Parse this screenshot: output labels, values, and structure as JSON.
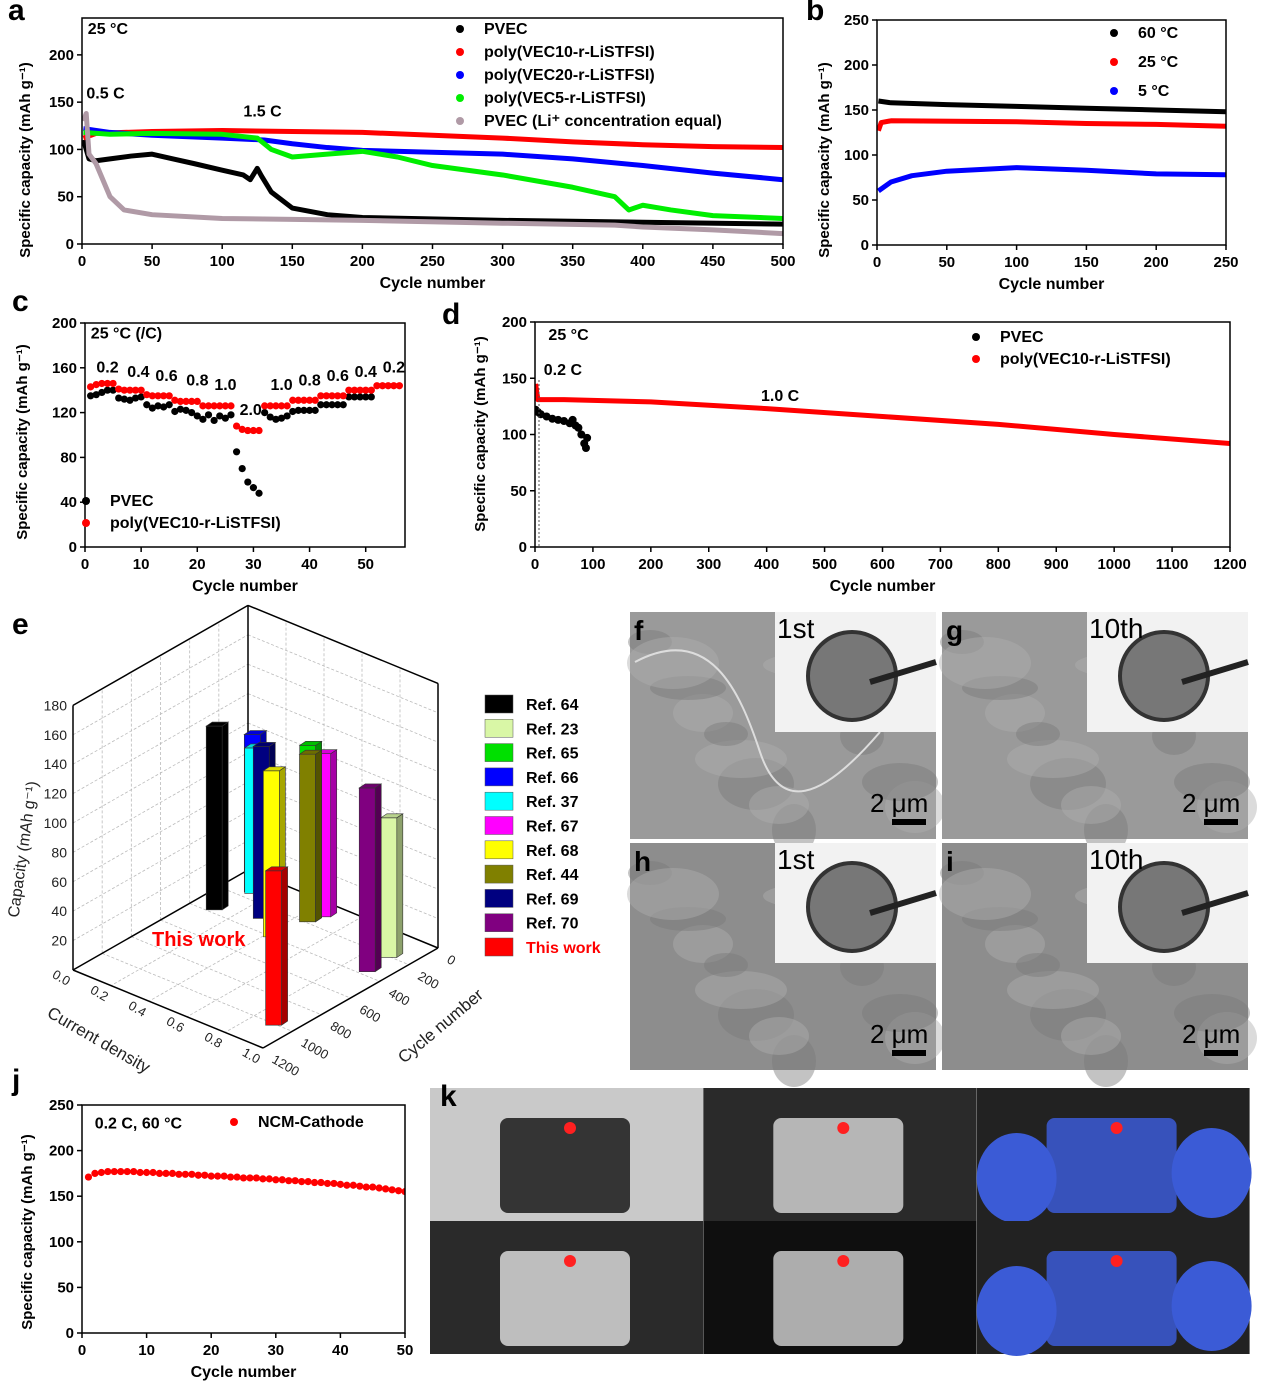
{
  "panel_letters": [
    "a",
    "b",
    "c",
    "d",
    "e",
    "f",
    "g",
    "h",
    "i",
    "j",
    "k"
  ],
  "chart_data": [
    {
      "id": "a",
      "type": "line",
      "xlabel": "Cycle number",
      "ylabel": "Specific capacity (mAh g⁻¹)",
      "xlim": [
        0,
        500
      ],
      "ylim": [
        0,
        239
      ],
      "xticks": [
        0,
        50,
        100,
        150,
        200,
        250,
        300,
        350,
        400,
        450,
        500
      ],
      "yticks": [
        0,
        50,
        100,
        150,
        200
      ],
      "legend_position": "top-right",
      "annotations": [
        {
          "text": "25 °C",
          "x": 2,
          "y": 222
        },
        {
          "text": "0.5 C",
          "x": 1,
          "y": 154
        },
        {
          "text": "1.5 C",
          "x": 113,
          "y": 135
        }
      ],
      "series": [
        {
          "name": "PVEC",
          "color": "#000000",
          "points": [
            [
              1,
              110
            ],
            [
              5,
              90
            ],
            [
              10,
              88
            ],
            [
              20,
              90
            ],
            [
              35,
              93
            ],
            [
              50,
              95
            ],
            [
              65,
              90
            ],
            [
              80,
              85
            ],
            [
              100,
              78
            ],
            [
              115,
              73
            ],
            [
              120,
              68
            ],
            [
              125,
              80
            ],
            [
              128,
              72
            ],
            [
              135,
              55
            ],
            [
              150,
              38
            ],
            [
              175,
              31
            ],
            [
              200,
              28
            ],
            [
              300,
              25
            ],
            [
              400,
              23
            ],
            [
              500,
              21
            ]
          ]
        },
        {
          "name": "poly(VEC10-r-LiSTFSI)",
          "color": "#ff0000",
          "points": [
            [
              1,
              112
            ],
            [
              10,
              117
            ],
            [
              50,
              119
            ],
            [
              100,
              120
            ],
            [
              150,
              119
            ],
            [
              200,
              118
            ],
            [
              250,
              115
            ],
            [
              300,
              112
            ],
            [
              350,
              108
            ],
            [
              400,
              105
            ],
            [
              450,
              103
            ],
            [
              500,
              102
            ]
          ]
        },
        {
          "name": "poly(VEC20-r-LiSTFSI)",
          "color": "#0000ff",
          "points": [
            [
              1,
              122
            ],
            [
              20,
              118
            ],
            [
              50,
              115
            ],
            [
              100,
              112
            ],
            [
              130,
              110
            ],
            [
              150,
              106
            ],
            [
              175,
              102
            ],
            [
              200,
              99
            ],
            [
              250,
              97
            ],
            [
              300,
              95
            ],
            [
              350,
              90
            ],
            [
              400,
              83
            ],
            [
              450,
              75
            ],
            [
              500,
              68
            ]
          ]
        },
        {
          "name": "poly(VEC5-r-LiSTFSI)",
          "color": "#00ee00",
          "points": [
            [
              1,
              118
            ],
            [
              20,
              116
            ],
            [
              50,
              117
            ],
            [
              100,
              116
            ],
            [
              125,
              112
            ],
            [
              135,
              100
            ],
            [
              150,
              92
            ],
            [
              175,
              95
            ],
            [
              200,
              98
            ],
            [
              225,
              92
            ],
            [
              250,
              83
            ],
            [
              300,
              73
            ],
            [
              350,
              60
            ],
            [
              380,
              50
            ],
            [
              390,
              36
            ],
            [
              400,
              41
            ],
            [
              420,
              36
            ],
            [
              450,
              30
            ],
            [
              500,
              27
            ]
          ]
        },
        {
          "name": "PVEC (Li⁺ concentration equal)",
          "color": "#b09aa6",
          "points": [
            [
              1,
              130
            ],
            [
              3,
              138
            ],
            [
              5,
              95
            ],
            [
              10,
              85
            ],
            [
              20,
              50
            ],
            [
              30,
              36
            ],
            [
              50,
              31
            ],
            [
              100,
              27
            ],
            [
              150,
              26
            ],
            [
              200,
              25
            ],
            [
              300,
              22
            ],
            [
              380,
              20
            ],
            [
              400,
              18
            ],
            [
              450,
              15
            ],
            [
              500,
              11
            ]
          ]
        }
      ]
    },
    {
      "id": "b",
      "type": "line",
      "xlabel": "Cycle number",
      "ylabel": "Specific capacity (mAh g⁻¹)",
      "xlim": [
        0,
        250
      ],
      "ylim": [
        0,
        250
      ],
      "xticks": [
        0,
        50,
        100,
        150,
        200,
        250
      ],
      "yticks": [
        0,
        50,
        100,
        150,
        200,
        250
      ],
      "legend_position": "top-right",
      "annotations": [],
      "series": [
        {
          "name": "60 °C",
          "color": "#000000",
          "points": [
            [
              1,
              160
            ],
            [
              10,
              158
            ],
            [
              50,
              156
            ],
            [
              100,
              154
            ],
            [
              150,
              152
            ],
            [
              200,
              150
            ],
            [
              250,
              148
            ]
          ]
        },
        {
          "name": "25 °C",
          "color": "#ff0000",
          "points": [
            [
              1,
              127
            ],
            [
              3,
              136
            ],
            [
              10,
              138
            ],
            [
              100,
              137
            ],
            [
              150,
              135
            ],
            [
              200,
              134
            ],
            [
              250,
              132
            ]
          ]
        },
        {
          "name": "5 °C",
          "color": "#0000ff",
          "points": [
            [
              1,
              60
            ],
            [
              10,
              70
            ],
            [
              25,
              77
            ],
            [
              50,
              82
            ],
            [
              100,
              86
            ],
            [
              150,
              83
            ],
            [
              200,
              79
            ],
            [
              250,
              78
            ]
          ]
        }
      ]
    },
    {
      "id": "c",
      "type": "scatter",
      "xlabel": "Cycle number",
      "ylabel": "Specific capacity (mAh g⁻¹)",
      "xlim": [
        0,
        57
      ],
      "ylim": [
        0,
        200
      ],
      "xticks": [
        0,
        10,
        20,
        30,
        40,
        50
      ],
      "yticks": [
        0,
        40,
        80,
        120,
        160,
        200
      ],
      "legend_position": "bottom-left",
      "annotations": [
        {
          "text": "25 °C (/C)",
          "x": 0.5,
          "y": 186
        },
        {
          "text": "0.2",
          "x": 1.5,
          "y": 156
        },
        {
          "text": "0.4",
          "x": 7,
          "y": 152
        },
        {
          "text": "0.6",
          "x": 12,
          "y": 148
        },
        {
          "text": "0.8",
          "x": 17.5,
          "y": 144
        },
        {
          "text": "1.0",
          "x": 22.5,
          "y": 140
        },
        {
          "text": "2.0",
          "x": 27,
          "y": 118
        },
        {
          "text": "1.0",
          "x": 32.5,
          "y": 140
        },
        {
          "text": "0.8",
          "x": 37.5,
          "y": 144
        },
        {
          "text": "0.6",
          "x": 42.5,
          "y": 148
        },
        {
          "text": "0.4",
          "x": 47.5,
          "y": 152
        },
        {
          "text": "0.2",
          "x": 52.5,
          "y": 156
        }
      ],
      "series": [
        {
          "name": "PVEC",
          "color": "#000000",
          "values": [
            135,
            136,
            138,
            140,
            140,
            133,
            132,
            131,
            133,
            134,
            127,
            124,
            126,
            125,
            127,
            121,
            123,
            122,
            120,
            117,
            114,
            118,
            113,
            117,
            115,
            118,
            85,
            70,
            58,
            53,
            48,
            120,
            116,
            114,
            115,
            117,
            121,
            122,
            122,
            122,
            122,
            127,
            127,
            127,
            127,
            127,
            134,
            134,
            134,
            134,
            134
          ]
        },
        {
          "name": "poly(VEC10-r-LiSTFSI)",
          "color": "#ff0000",
          "values": [
            143,
            145,
            146,
            146,
            146,
            141,
            140,
            140,
            140,
            140,
            136,
            135,
            135,
            135,
            135,
            131,
            130,
            130,
            130,
            130,
            126,
            126,
            126,
            126,
            126,
            126,
            108,
            105,
            104,
            104,
            104,
            126,
            126,
            126,
            126,
            126,
            131,
            131,
            131,
            131,
            131,
            135,
            135,
            135,
            135,
            135,
            140,
            140,
            140,
            140,
            140,
            144,
            144,
            144,
            144,
            144
          ]
        }
      ]
    },
    {
      "id": "d",
      "type": "line",
      "xlabel": "Cycle number",
      "ylabel": "Specific capacity (mAh g⁻¹)",
      "xlim": [
        0,
        1200
      ],
      "ylim": [
        0,
        200
      ],
      "xticks": [
        0,
        100,
        200,
        300,
        400,
        500,
        600,
        700,
        800,
        900,
        1000,
        1100,
        1200
      ],
      "yticks": [
        0,
        50,
        100,
        150,
        200
      ],
      "legend_position": "top-right",
      "annotations": [
        {
          "text": "25 °C",
          "x": 18,
          "y": 184
        },
        {
          "text": "0.2 C",
          "x": 10,
          "y": 153
        },
        {
          "text": "1.0 C",
          "x": 385,
          "y": 130
        }
      ],
      "series": [
        {
          "name": "PVEC",
          "color": "#000000",
          "marker": "dot",
          "points": [
            [
              1,
              122
            ],
            [
              5,
              120
            ],
            [
              10,
              118
            ],
            [
              20,
              116
            ],
            [
              30,
              114
            ],
            [
              40,
              113
            ],
            [
              50,
              112
            ],
            [
              60,
              110
            ],
            [
              65,
              113
            ],
            [
              70,
              108
            ],
            [
              75,
              106
            ],
            [
              80,
              100
            ],
            [
              85,
              92
            ],
            [
              88,
              88
            ],
            [
              90,
              97
            ]
          ]
        },
        {
          "name": "poly(VEC10-r-LiSTFSI)",
          "color": "#ff0000",
          "points": [
            [
              1,
              145
            ],
            [
              5,
              131
            ],
            [
              50,
              131
            ],
            [
              200,
              129
            ],
            [
              400,
              123
            ],
            [
              600,
              116
            ],
            [
              800,
              109
            ],
            [
              1000,
              100
            ],
            [
              1200,
              92
            ]
          ]
        }
      ]
    },
    {
      "id": "e",
      "type": "bar3d",
      "zlabel": "Capacity (mAh g⁻¹)",
      "xlabel": "Current density",
      "ylabel": "Cycle number",
      "zlim": [
        0,
        180
      ],
      "xlim": [
        0,
        1.0
      ],
      "ylim": [
        0,
        1200
      ],
      "zticks": [
        20,
        40,
        60,
        80,
        100,
        120,
        140,
        160,
        180
      ],
      "xticks": [
        "0.0",
        "0.2",
        "0.4",
        "0.6",
        "0.8",
        "1.0"
      ],
      "yticks": [
        0,
        200,
        400,
        600,
        800,
        1000,
        1200
      ],
      "annotation": "This work",
      "legend_position": "right",
      "bars": [
        {
          "name": "Ref. 64",
          "color": "#000000",
          "current": 0.11,
          "cycles": 375,
          "capacity": 125
        },
        {
          "name": "Ref. 23",
          "color": "#d9f7a6",
          "current": 0.9,
          "cycles": 207,
          "capacity": 95
        },
        {
          "name": "Ref. 65",
          "color": "#00e000",
          "current": 0.46,
          "cycles": 190,
          "capacity": 120
        },
        {
          "name": "Ref. 66",
          "color": "#0000ff",
          "current": 0.13,
          "cycles": 140,
          "capacity": 107
        },
        {
          "name": "Ref. 37",
          "color": "#00ffff",
          "current": 0.14,
          "cycles": 150,
          "capacity": 99
        },
        {
          "name": "Ref. 67",
          "color": "#ff00ff",
          "current": 0.48,
          "cycles": 113,
          "capacity": 111
        },
        {
          "name": "Ref. 68",
          "color": "#ffff00",
          "current": 0.43,
          "cycles": 400,
          "capacity": 113
        },
        {
          "name": "Ref. 44",
          "color": "#808000",
          "current": 0.46,
          "cycles": 191,
          "capacity": 114
        },
        {
          "name": "Ref. 69",
          "color": "#000080",
          "current": 0.3,
          "cycles": 300,
          "capacity": 117
        },
        {
          "name": "Ref. 70",
          "color": "#800080",
          "current": 0.91,
          "cycles": 368,
          "capacity": 125
        },
        {
          "name": "This work",
          "color": "#ff0000",
          "current": 0.91,
          "cycles": 1010,
          "capacity": 105
        }
      ]
    },
    {
      "id": "j",
      "type": "scatter",
      "xlabel": "Cycle number",
      "ylabel": "Specific capacity (mAh g⁻¹)",
      "xlim": [
        0,
        50
      ],
      "ylim": [
        0,
        250
      ],
      "xticks": [
        0,
        10,
        20,
        30,
        40,
        50
      ],
      "yticks": [
        0,
        50,
        100,
        150,
        200,
        250
      ],
      "legend_position": "top-right",
      "annotations": [
        {
          "text": "0.2 C, 60 °C",
          "x": 1.5,
          "y": 224
        }
      ],
      "series": [
        {
          "name": "NCM-Cathode",
          "color": "#ff0000",
          "values": [
            171,
            175,
            176,
            177,
            177,
            177,
            177,
            177,
            176,
            176,
            176,
            175,
            175,
            175,
            174,
            174,
            174,
            173,
            173,
            172,
            172,
            172,
            171,
            171,
            170,
            170,
            170,
            169,
            169,
            168,
            168,
            167,
            167,
            166,
            166,
            165,
            165,
            164,
            164,
            163,
            162,
            162,
            161,
            160,
            160,
            159,
            158,
            157,
            156,
            155
          ]
        }
      ]
    }
  ],
  "sem_images": [
    {
      "panel": "f",
      "cycle_label": "1st",
      "scale_bar": "2 μm"
    },
    {
      "panel": "g",
      "cycle_label": "10th",
      "scale_bar": "2 μm"
    },
    {
      "panel": "h",
      "cycle_label": "1st",
      "scale_bar": "2 μm"
    },
    {
      "panel": "i",
      "cycle_label": "10th",
      "scale_bar": "2 μm"
    }
  ],
  "photos_k": [
    "led-demo-1",
    "led-demo-2",
    "led-demo-3",
    "led-demo-4",
    "led-demo-5",
    "led-demo-6"
  ]
}
